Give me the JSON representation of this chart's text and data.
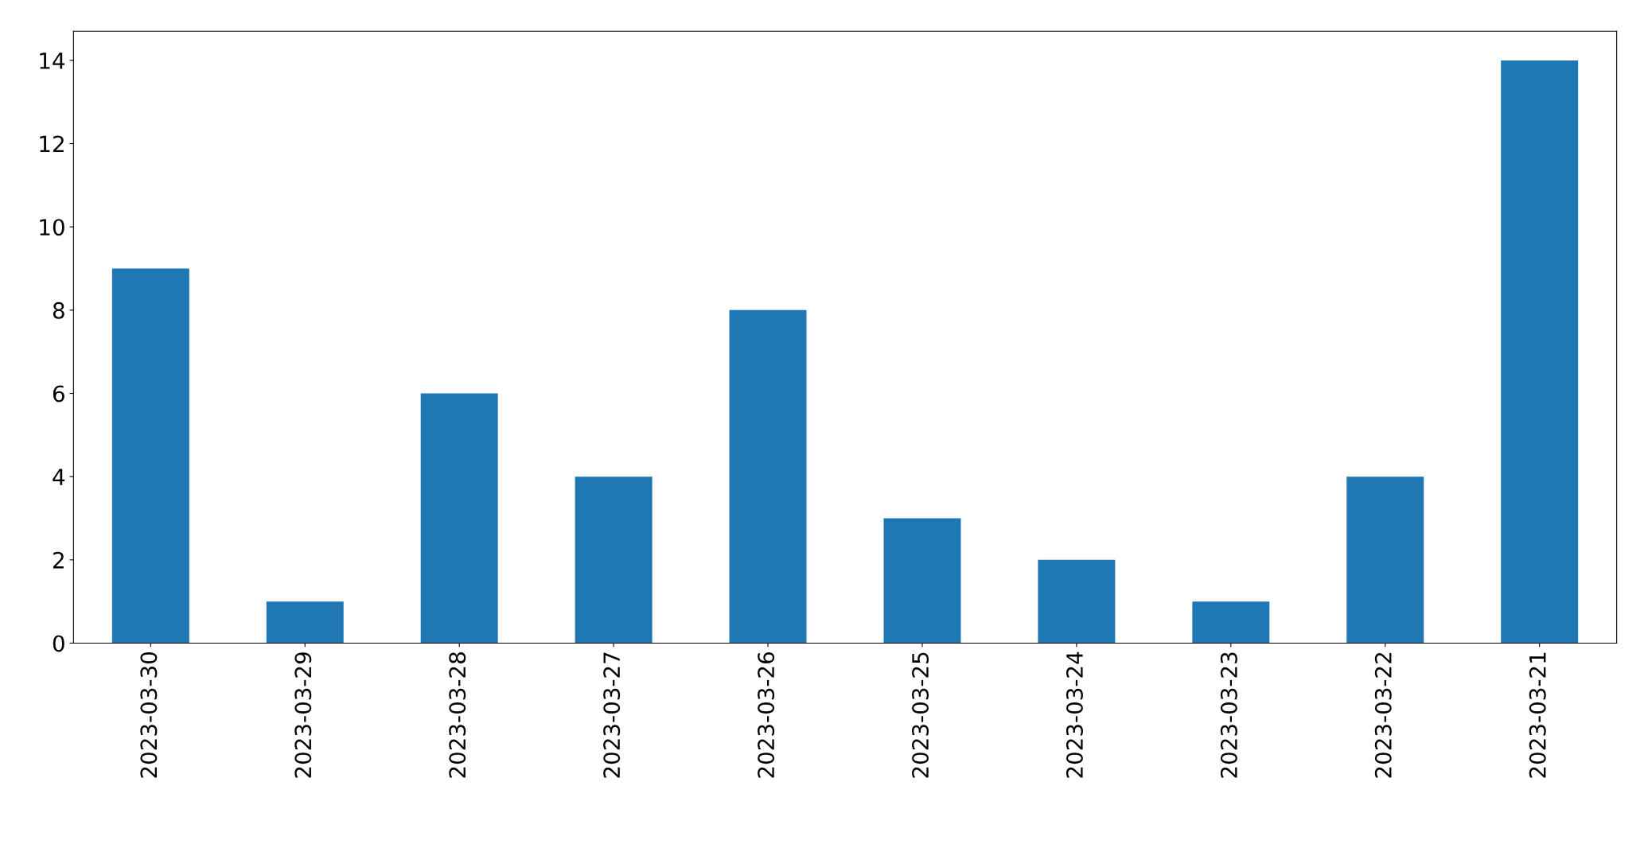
{
  "chart_data": {
    "type": "bar",
    "categories": [
      "2023-03-30",
      "2023-03-29",
      "2023-03-28",
      "2023-03-27",
      "2023-03-26",
      "2023-03-25",
      "2023-03-24",
      "2023-03-23",
      "2023-03-22",
      "2023-03-21"
    ],
    "values": [
      9,
      1,
      6,
      4,
      8,
      3,
      2,
      1,
      4,
      14
    ],
    "color": "#1f77b4",
    "ylim": [
      0,
      14.7
    ],
    "yticks": [
      0,
      2,
      4,
      6,
      8,
      10,
      12,
      14
    ],
    "grid": false,
    "legend": false
  }
}
